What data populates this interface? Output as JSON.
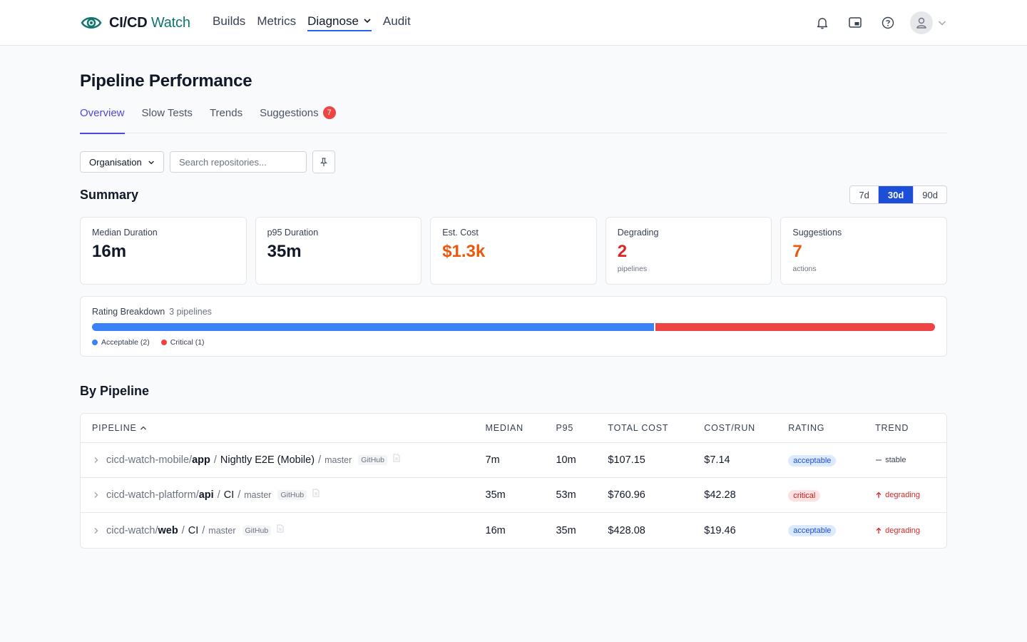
{
  "brand": {
    "name_bold": "CI/CD",
    "name_light": "Watch"
  },
  "nav": {
    "items": [
      {
        "label": "Builds"
      },
      {
        "label": "Metrics"
      },
      {
        "label": "Diagnose"
      },
      {
        "label": "Audit"
      }
    ],
    "active": "Diagnose"
  },
  "topbar": {
    "icons": [
      "bell-icon",
      "picture-in-picture-icon",
      "help-icon"
    ],
    "avatar": "user-icon"
  },
  "page": {
    "title": "Pipeline Performance"
  },
  "tabs": [
    {
      "label": "Overview"
    },
    {
      "label": "Slow Tests"
    },
    {
      "label": "Trends"
    },
    {
      "label": "Suggestions",
      "badge": "7"
    }
  ],
  "filters": {
    "org_label": "Organisation",
    "search_placeholder": "Search repositories..."
  },
  "summary": {
    "title": "Summary",
    "ranges": [
      "7d",
      "30d",
      "90d"
    ],
    "selected_range": "30d",
    "cards": [
      {
        "label": "Median Duration",
        "value": "16m",
        "sub": ""
      },
      {
        "label": "p95 Duration",
        "value": "35m",
        "sub": ""
      },
      {
        "label": "Est. Cost",
        "value": "$1.3k",
        "sub": ""
      },
      {
        "label": "Degrading",
        "value": "2",
        "sub": "pipelines"
      },
      {
        "label": "Suggestions",
        "value": "7",
        "sub": "actions"
      }
    ]
  },
  "rating": {
    "title": "Rating Breakdown",
    "count_label": "3 pipelines",
    "segments": [
      {
        "label": "Acceptable (2)",
        "count": 2,
        "color": "#3b82f6"
      },
      {
        "label": "Critical (1)",
        "count": 1,
        "color": "#ef4444"
      }
    ]
  },
  "by_pipeline": {
    "title": "By Pipeline",
    "columns": [
      "Pipeline",
      "Median",
      "P95",
      "Total Cost",
      "Cost/Run",
      "Rating",
      "Trend"
    ],
    "rows": [
      {
        "org": "cicd-watch-mobile/",
        "repo": "app",
        "workflow": "Nightly E2E (Mobile)",
        "branch": "master",
        "provider": "GitHub",
        "median": "7m",
        "p95": "10m",
        "total_cost": "$107.15",
        "cost_run": "$7.14",
        "rating": "acceptable",
        "trend": "stable"
      },
      {
        "org": "cicd-watch-platform/",
        "repo": "api",
        "workflow": "CI",
        "branch": "master",
        "provider": "GitHub",
        "median": "35m",
        "p95": "53m",
        "total_cost": "$760.96",
        "cost_run": "$42.28",
        "rating": "critical",
        "trend": "degrading"
      },
      {
        "org": "cicd-watch/",
        "repo": "web",
        "workflow": "CI",
        "branch": "master",
        "provider": "GitHub",
        "median": "16m",
        "p95": "35m",
        "total_cost": "$428.08",
        "cost_run": "$19.46",
        "rating": "acceptable",
        "trend": "degrading"
      }
    ]
  },
  "colors": {
    "accent": "#4f46e5",
    "primary": "#1d4ed8",
    "brand": "#0f766e",
    "danger": "#ef4444",
    "warning": "#ea580c"
  }
}
